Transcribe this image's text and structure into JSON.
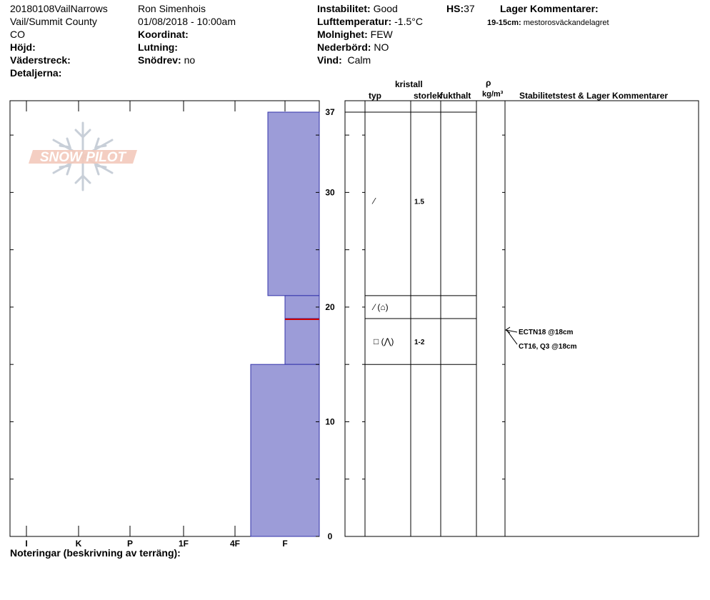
{
  "header": {
    "col1": [
      "20180108VailNarrows",
      "Vail/Summit County",
      "CO"
    ],
    "elevation_label": "Höjd:",
    "aspect_label": "Väderstreck:",
    "details_label": "Detaljerna:",
    "observer": "Ron Simenhois",
    "datetime": "01/08/2018 - 10:00am",
    "coord_label": "Koordinat:",
    "slope_label": "Lutning:",
    "drift_label": "Snödrev:",
    "drift_value": "no",
    "stability_label": "Instabilitet:",
    "stability_value": "Good",
    "airtemp_label": "Lufttemperatur:",
    "airtemp_value": "-1.5°C",
    "sky_label": "Molnighet:",
    "sky_value": "FEW",
    "precip_label": "Nederbörd:",
    "precip_value": "NO",
    "wind_label": "Vind:",
    "wind_value": "Calm",
    "hs_label": "HS:",
    "hs_value": "37",
    "layer_comments_label": "Lager Kommentarer:",
    "layer_comment_range": "19-15cm:",
    "layer_comment_text": "mestorosväckandelagret"
  },
  "logo": {
    "text": "SNOW PILOT"
  },
  "table_headers": {
    "crystal": "kristall",
    "type": "typ",
    "size": "storlek",
    "moisture": "fukthalt",
    "rho": "ρ",
    "density_unit": "kg/m³",
    "stability": "Stabilitetstest & Lager Kommentarer"
  },
  "footer": {
    "notes_label": "Noteringar (beskrivning av terräng):"
  },
  "colors": {
    "layer_fill": "#9c9cd8",
    "layer_stroke": "#3333aa",
    "weak_layer": "#cc0000",
    "logo": "#f0b8a8"
  },
  "chart_data": {
    "type": "snow-profile",
    "hardness_scale": [
      "I",
      "K",
      "P",
      "1F",
      "4F",
      "F"
    ],
    "depth_ticks": [
      0,
      10,
      20,
      30,
      37
    ],
    "ylim": [
      0,
      37
    ],
    "layers": [
      {
        "top": 37,
        "bottom": 21,
        "hardness": "4F",
        "type_symbol": "⁄",
        "grain_size": "1.5"
      },
      {
        "top": 21,
        "bottom": 19,
        "hardness": "F",
        "type_symbol": "⁄ (⌂)",
        "grain_size": ""
      },
      {
        "top": 19,
        "bottom": 15,
        "hardness": "F",
        "type_symbol": "□ (⋀)",
        "grain_size": "1-2"
      },
      {
        "top": 15,
        "bottom": 0,
        "hardness": "4F-F",
        "type_symbol": "",
        "grain_size": ""
      }
    ],
    "weak_layer_depth": 19,
    "stability_tests": [
      {
        "depth": 18,
        "label": "ECTN18 @18cm"
      },
      {
        "depth": 18,
        "label": "CT16, Q3 @18cm"
      }
    ]
  }
}
